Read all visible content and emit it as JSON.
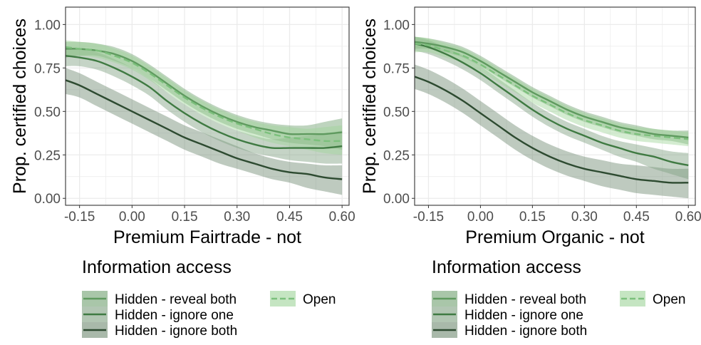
{
  "chart_data": [
    {
      "type": "line",
      "xlabel": "Premium Fairtrade - not",
      "ylabel": "Prop. certified choices",
      "xlim": [
        -0.19,
        0.62
      ],
      "ylim": [
        -0.04,
        1.1
      ],
      "x_ticks": [
        -0.15,
        0.0,
        0.15,
        0.3,
        0.45,
        0.6
      ],
      "x_tick_labels": [
        "-0.15",
        "0.00",
        "0.15",
        "0.30",
        "0.45",
        "0.60"
      ],
      "y_ticks": [
        0.0,
        0.25,
        0.5,
        0.75,
        1.0
      ],
      "y_tick_labels": [
        "0.00",
        "0.25",
        "0.50",
        "0.75",
        "1.00"
      ],
      "grid": true,
      "x": [
        -0.19,
        -0.15,
        -0.1,
        -0.05,
        0.0,
        0.05,
        0.1,
        0.15,
        0.2,
        0.25,
        0.3,
        0.35,
        0.4,
        0.45,
        0.5,
        0.55,
        0.6
      ],
      "series": [
        {
          "name": "Hidden - reveal both",
          "values": [
            0.86,
            0.86,
            0.85,
            0.83,
            0.79,
            0.73,
            0.66,
            0.59,
            0.53,
            0.48,
            0.44,
            0.41,
            0.39,
            0.37,
            0.37,
            0.37,
            0.38
          ],
          "lower": [
            0.81,
            0.82,
            0.82,
            0.79,
            0.75,
            0.69,
            0.62,
            0.55,
            0.49,
            0.44,
            0.4,
            0.37,
            0.34,
            0.32,
            0.31,
            0.3,
            0.28
          ],
          "upper": [
            0.9,
            0.9,
            0.89,
            0.87,
            0.83,
            0.77,
            0.7,
            0.63,
            0.57,
            0.52,
            0.48,
            0.45,
            0.43,
            0.42,
            0.42,
            0.44,
            0.46
          ]
        },
        {
          "name": "Hidden - ignore one",
          "values": [
            0.82,
            0.81,
            0.79,
            0.75,
            0.7,
            0.64,
            0.56,
            0.49,
            0.43,
            0.38,
            0.34,
            0.31,
            0.29,
            0.29,
            0.29,
            0.29,
            0.3
          ],
          "lower": [
            0.76,
            0.76,
            0.74,
            0.7,
            0.65,
            0.59,
            0.51,
            0.44,
            0.38,
            0.33,
            0.29,
            0.26,
            0.24,
            0.22,
            0.21,
            0.2,
            0.2
          ],
          "upper": [
            0.87,
            0.86,
            0.84,
            0.8,
            0.75,
            0.69,
            0.61,
            0.54,
            0.48,
            0.43,
            0.39,
            0.36,
            0.34,
            0.35,
            0.36,
            0.37,
            0.39
          ]
        },
        {
          "name": "Hidden - ignore both",
          "values": [
            0.68,
            0.65,
            0.6,
            0.55,
            0.5,
            0.45,
            0.4,
            0.35,
            0.31,
            0.27,
            0.23,
            0.2,
            0.17,
            0.15,
            0.14,
            0.12,
            0.11
          ],
          "lower": [
            0.6,
            0.58,
            0.53,
            0.48,
            0.43,
            0.38,
            0.33,
            0.28,
            0.24,
            0.2,
            0.17,
            0.14,
            0.11,
            0.09,
            0.06,
            0.04,
            0.02
          ],
          "upper": [
            0.75,
            0.72,
            0.67,
            0.62,
            0.57,
            0.52,
            0.47,
            0.42,
            0.38,
            0.34,
            0.3,
            0.26,
            0.23,
            0.21,
            0.2,
            0.19,
            0.19
          ]
        },
        {
          "name": "Open",
          "dashed": true,
          "values": [
            0.87,
            0.86,
            0.85,
            0.82,
            0.78,
            0.72,
            0.65,
            0.58,
            0.52,
            0.47,
            0.43,
            0.4,
            0.37,
            0.35,
            0.34,
            0.33,
            0.33
          ],
          "lower": [
            0.82,
            0.82,
            0.81,
            0.78,
            0.74,
            0.68,
            0.61,
            0.54,
            0.48,
            0.43,
            0.39,
            0.35,
            0.32,
            0.3,
            0.28,
            0.26,
            0.25
          ],
          "upper": [
            0.91,
            0.9,
            0.89,
            0.86,
            0.82,
            0.76,
            0.69,
            0.62,
            0.56,
            0.51,
            0.47,
            0.44,
            0.42,
            0.41,
            0.4,
            0.41,
            0.42
          ]
        }
      ]
    },
    {
      "type": "line",
      "xlabel": "Premium Organic - not",
      "ylabel": "Prop. certified choices",
      "xlim": [
        -0.19,
        0.62
      ],
      "ylim": [
        -0.04,
        1.1
      ],
      "x_ticks": [
        -0.15,
        0.0,
        0.15,
        0.3,
        0.45,
        0.6
      ],
      "x_tick_labels": [
        "-0.15",
        "0.00",
        "0.15",
        "0.30",
        "0.45",
        "0.60"
      ],
      "y_ticks": [
        0.0,
        0.25,
        0.5,
        0.75,
        1.0
      ],
      "y_tick_labels": [
        "0.00",
        "0.25",
        "0.50",
        "0.75",
        "1.00"
      ],
      "grid": true,
      "x": [
        -0.19,
        -0.15,
        -0.1,
        -0.05,
        0.0,
        0.05,
        0.1,
        0.15,
        0.2,
        0.25,
        0.3,
        0.35,
        0.4,
        0.45,
        0.5,
        0.55,
        0.6
      ],
      "series": [
        {
          "name": "Hidden - reveal both",
          "values": [
            0.9,
            0.89,
            0.87,
            0.84,
            0.79,
            0.73,
            0.67,
            0.61,
            0.56,
            0.51,
            0.47,
            0.44,
            0.41,
            0.39,
            0.37,
            0.36,
            0.35
          ],
          "lower": [
            0.86,
            0.86,
            0.84,
            0.81,
            0.76,
            0.7,
            0.64,
            0.58,
            0.53,
            0.48,
            0.44,
            0.41,
            0.38,
            0.36,
            0.34,
            0.33,
            0.31
          ],
          "upper": [
            0.93,
            0.92,
            0.9,
            0.87,
            0.82,
            0.76,
            0.7,
            0.64,
            0.59,
            0.54,
            0.5,
            0.47,
            0.44,
            0.42,
            0.4,
            0.39,
            0.39
          ]
        },
        {
          "name": "Hidden - ignore one",
          "values": [
            0.89,
            0.87,
            0.83,
            0.78,
            0.72,
            0.65,
            0.58,
            0.51,
            0.45,
            0.4,
            0.36,
            0.32,
            0.29,
            0.26,
            0.24,
            0.21,
            0.19
          ],
          "lower": [
            0.85,
            0.83,
            0.79,
            0.74,
            0.68,
            0.61,
            0.54,
            0.47,
            0.41,
            0.36,
            0.32,
            0.28,
            0.24,
            0.21,
            0.17,
            0.14,
            0.11
          ],
          "upper": [
            0.93,
            0.91,
            0.87,
            0.82,
            0.76,
            0.69,
            0.62,
            0.55,
            0.49,
            0.44,
            0.4,
            0.36,
            0.33,
            0.31,
            0.29,
            0.27,
            0.26
          ]
        },
        {
          "name": "Hidden - ignore both",
          "values": [
            0.7,
            0.67,
            0.62,
            0.56,
            0.49,
            0.42,
            0.35,
            0.29,
            0.24,
            0.2,
            0.17,
            0.15,
            0.13,
            0.11,
            0.1,
            0.09,
            0.09
          ],
          "lower": [
            0.63,
            0.6,
            0.55,
            0.49,
            0.42,
            0.35,
            0.28,
            0.22,
            0.17,
            0.13,
            0.1,
            0.07,
            0.05,
            0.03,
            0.02,
            0.01,
            0.0
          ],
          "upper": [
            0.77,
            0.74,
            0.69,
            0.63,
            0.56,
            0.49,
            0.42,
            0.36,
            0.31,
            0.27,
            0.24,
            0.22,
            0.2,
            0.19,
            0.18,
            0.17,
            0.17
          ]
        },
        {
          "name": "Open",
          "dashed": true,
          "values": [
            0.89,
            0.88,
            0.85,
            0.82,
            0.77,
            0.71,
            0.65,
            0.59,
            0.54,
            0.49,
            0.45,
            0.42,
            0.39,
            0.37,
            0.36,
            0.35,
            0.34
          ],
          "lower": [
            0.84,
            0.84,
            0.81,
            0.78,
            0.73,
            0.67,
            0.61,
            0.55,
            0.5,
            0.45,
            0.41,
            0.38,
            0.35,
            0.33,
            0.32,
            0.31,
            0.3
          ],
          "upper": [
            0.93,
            0.92,
            0.89,
            0.86,
            0.81,
            0.75,
            0.69,
            0.63,
            0.58,
            0.53,
            0.49,
            0.46,
            0.43,
            0.41,
            0.4,
            0.39,
            0.38
          ]
        }
      ]
    }
  ],
  "legend": {
    "title": "Information access",
    "items": [
      "Hidden - reveal both",
      "Hidden - ignore one",
      "Hidden - ignore both",
      "Open"
    ]
  },
  "colors": {
    "Hidden - reveal both": "#5f9a5f",
    "Hidden - ignore one": "#3f7a42",
    "Hidden - ignore both": "#2d4a30",
    "Open": "#7cc07c",
    "band_Hidden - reveal both": "#6fa06f",
    "band_Hidden - ignore one": "#7fa080",
    "band_Hidden - ignore both": "#6f8a72",
    "band_Open": "#9fd49a",
    "grid": "#ebebeb",
    "panel_border": "#333333"
  }
}
